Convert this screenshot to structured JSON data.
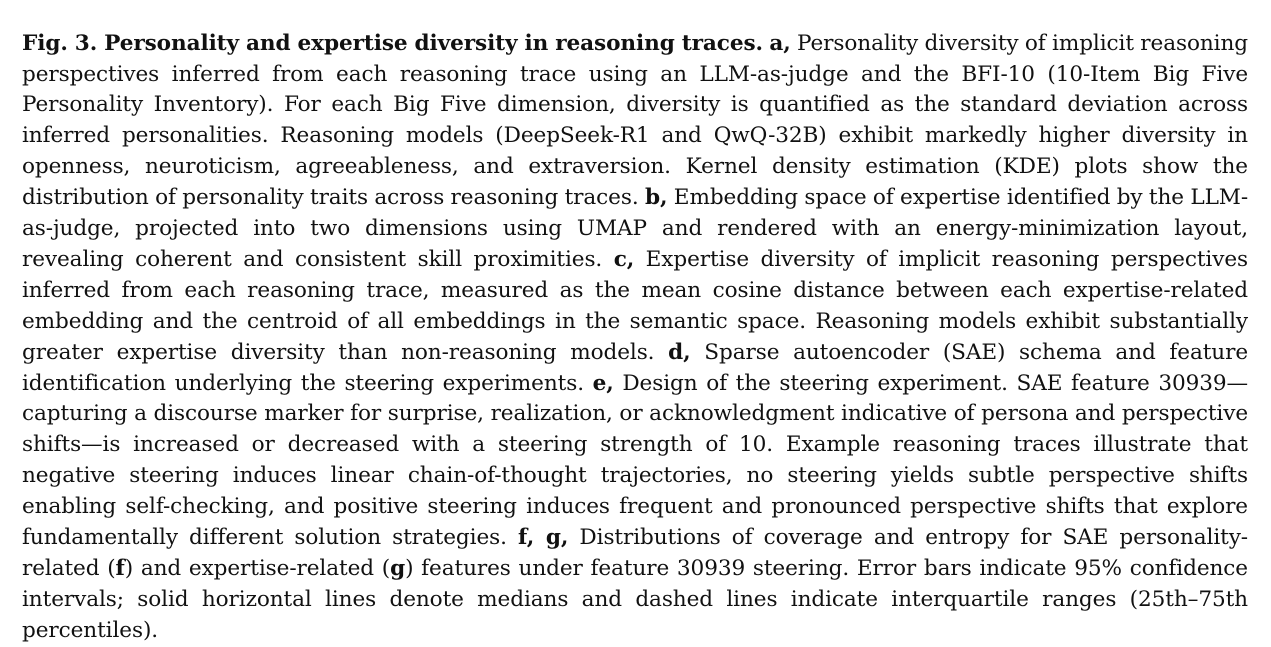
{
  "figure": {
    "title": "Fig. 3. Personality and expertise diversity in reasoning traces.",
    "segments": [
      {
        "label": "a,",
        "text": "Personality diversity of implicit reasoning perspectives inferred from each reasoning trace using an LLM-as-judge and the BFI-10 (10-Item Big Five Personality Inventory). For each Big Five dimension, diversity is quantified as the standard deviation across inferred personalities. Reasoning models (DeepSeek-R1 and QwQ-32B) exhibit markedly higher diversity in openness, neuroticism, agreeableness, and extraversion. Kernel density estimation (KDE) plots show the distribution of personality traits across reasoning traces."
      },
      {
        "label": "b,",
        "text": "Embedding space of expertise identified by the LLM-as-judge, projected into two dimensions using UMAP and rendered with an energy-minimization layout, revealing coherent and consistent skill proximities."
      },
      {
        "label": "c,",
        "text": "Expertise diversity of implicit reasoning perspectives inferred from each reasoning trace, measured as the mean cosine distance between each expertise-related embedding and the centroid of all embeddings in the semantic space. Reasoning models exhibit substantially greater expertise diversity than non-reasoning models."
      },
      {
        "label": "d,",
        "text": "Sparse autoencoder (SAE) schema and feature identification underlying the steering experiments."
      },
      {
        "label": "e,",
        "text": "Design of the steering experiment. SAE feature 30939—capturing a discourse marker for surprise, realization, or acknowledgment indicative of persona and perspective shifts—is increased or decreased with a steering strength of 10. Example reasoning traces illustrate that negative steering induces linear chain-of-thought trajectories, no steering yields subtle perspective shifts enabling self-checking, and positive steering induces frequent and pronounced perspective shifts that explore fundamentally different solution strategies."
      }
    ],
    "fg": {
      "label": "f, g,",
      "text_start": "Distributions of coverage and entropy for SAE personality-related (",
      "f_ref": "f",
      "text_mid": ") and expertise-related (",
      "g_ref": "g",
      "text_end": ") features under feature 30939 steering. Error bars indicate 95% confidence intervals; solid horizontal lines denote medians and dashed lines indicate interquartile ranges (25th–75th percentiles)."
    }
  }
}
